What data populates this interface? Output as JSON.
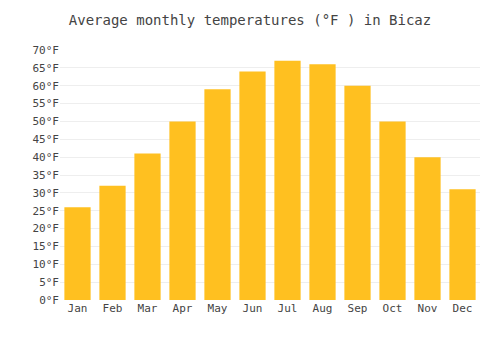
{
  "chart_data": {
    "type": "bar",
    "title": "Average monthly temperatures (°F ) in Bicaz",
    "categories": [
      "Jan",
      "Feb",
      "Mar",
      "Apr",
      "May",
      "Jun",
      "Jul",
      "Aug",
      "Sep",
      "Oct",
      "Nov",
      "Dec"
    ],
    "values": [
      26,
      32,
      41,
      50,
      59,
      64,
      67,
      66,
      60,
      50,
      40,
      31
    ],
    "color": "#FFC020",
    "ylim": [
      0,
      70
    ],
    "yticks": [
      {
        "value": 0,
        "label": "0°F"
      },
      {
        "value": 5,
        "label": "5°F"
      },
      {
        "value": 10,
        "label": "10°F"
      },
      {
        "value": 15,
        "label": "15°F"
      },
      {
        "value": 20,
        "label": "20°F"
      },
      {
        "value": 25,
        "label": "25°F"
      },
      {
        "value": 30,
        "label": "30°F"
      },
      {
        "value": 35,
        "label": "35°F"
      },
      {
        "value": 40,
        "label": "40°F"
      },
      {
        "value": 45,
        "label": "45°F"
      },
      {
        "value": 50,
        "label": "50°F"
      },
      {
        "value": 55,
        "label": "55°F"
      },
      {
        "value": 60,
        "label": "60°F"
      },
      {
        "value": 65,
        "label": "65°F"
      },
      {
        "value": 70,
        "label": "70°F"
      }
    ],
    "grid": true
  }
}
